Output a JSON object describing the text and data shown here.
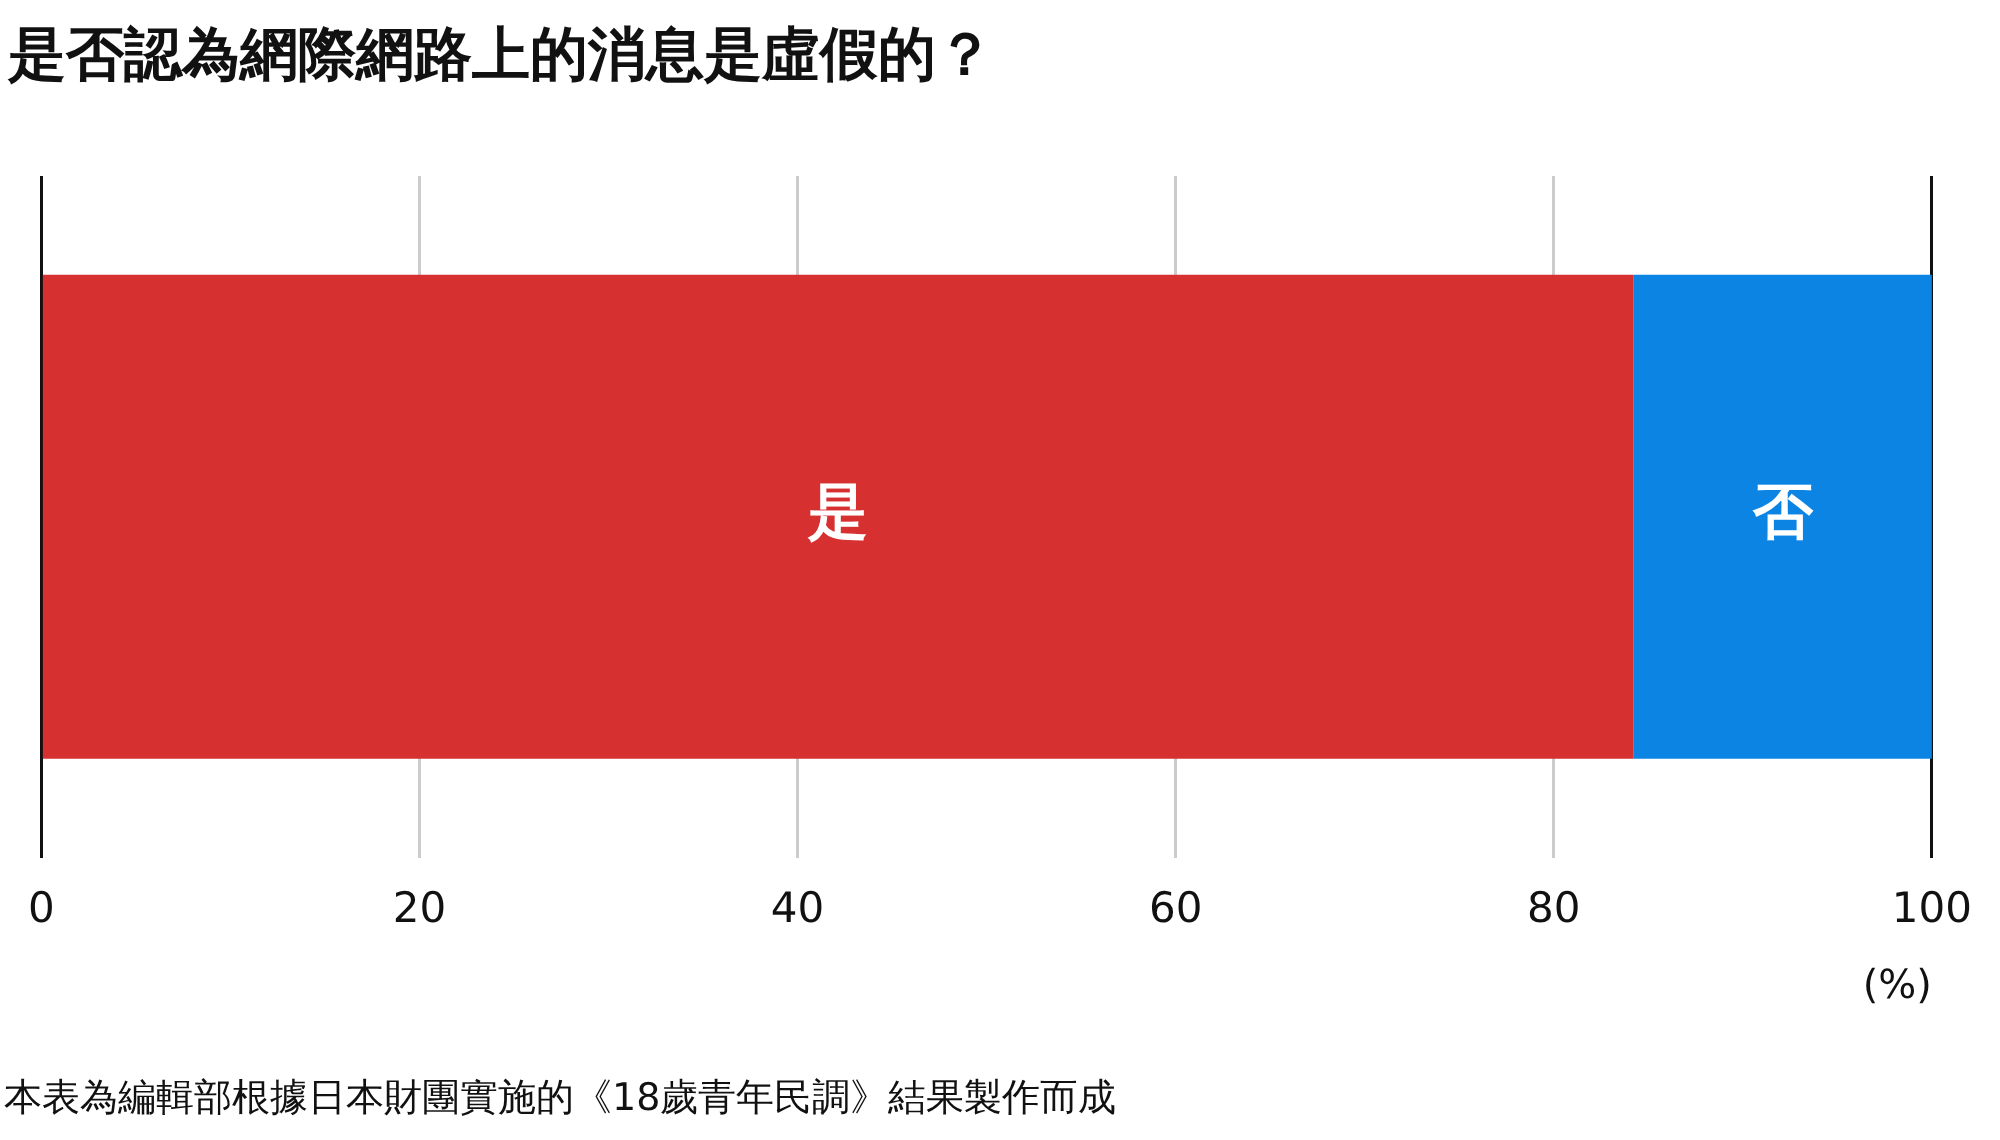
{
  "chart_data": {
    "type": "bar",
    "orientation": "horizontal",
    "stacked": true,
    "title": "是否認為網際網路上的消息是虛假的？",
    "xlabel": "(%)",
    "categories": [
      null
    ],
    "series": [
      {
        "name": "是",
        "color": "#d63031",
        "values": [
          84.2
        ]
      },
      {
        "name": "否",
        "color": "#0c84e4",
        "values": [
          15.8
        ]
      }
    ],
    "xlim": [
      0,
      100
    ],
    "xticks": [
      0,
      20,
      40,
      60,
      80,
      100
    ],
    "grid": "x",
    "legend": false,
    "annotations": [
      "本表為編輯部根據日本財團實施的《18歲青年民調》結果製作而成"
    ]
  }
}
